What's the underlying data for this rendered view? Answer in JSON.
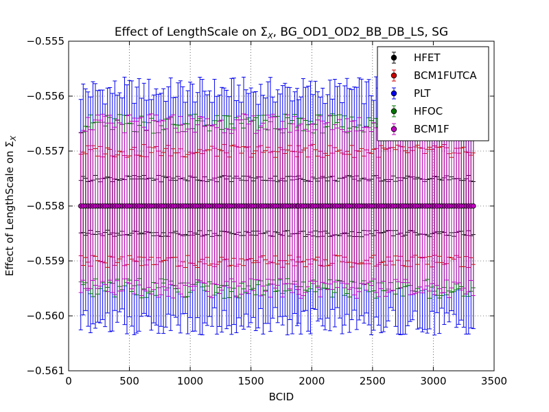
{
  "chart_data": {
    "type": "scatter",
    "title": "Effect of LengthScale on Σ",
    "title_sub": "X",
    "title_suffix": ", BG_OD1_OD2_BB_DB_LS, SG",
    "xlabel": "BCID",
    "ylabel": "Effect of LengthScale on Σ",
    "ylabel_sub": "X",
    "xlim": [
      0,
      3500
    ],
    "ylim": [
      -0.561,
      -0.555
    ],
    "xticks": [
      0,
      500,
      1000,
      1500,
      2000,
      2500,
      3000,
      3500
    ],
    "xtick_labels": [
      "0",
      "500",
      "1000",
      "1500",
      "2000",
      "2500",
      "3000",
      "3500"
    ],
    "yticks": [
      -0.561,
      -0.56,
      -0.559,
      -0.558,
      -0.557,
      -0.556,
      -0.555
    ],
    "ytick_labels": [
      "−0.561",
      "−0.560",
      "−0.559",
      "−0.558",
      "−0.557",
      "−0.556",
      "−0.555"
    ],
    "grid": true,
    "legend_position": "top-right",
    "central_value": -0.558,
    "bcid_groups": [
      [
        100,
        990
      ],
      [
        1000,
        1880
      ],
      [
        1890,
        2780
      ],
      [
        2790,
        3330
      ]
    ],
    "bcid_step": 20,
    "series": [
      {
        "name": "HFET",
        "color": "#000000",
        "error_approx": 0.0005
      },
      {
        "name": "BCM1FUTCA",
        "color": "#cc0000",
        "error_approx": 0.001
      },
      {
        "name": "PLT",
        "color": "#0000ee",
        "error_approx": 0.0021
      },
      {
        "name": "HFOC",
        "color": "#007700",
        "error_approx": 0.0015
      },
      {
        "name": "BCM1F",
        "color": "#bf00bf",
        "error_approx": 0.0015
      }
    ]
  }
}
